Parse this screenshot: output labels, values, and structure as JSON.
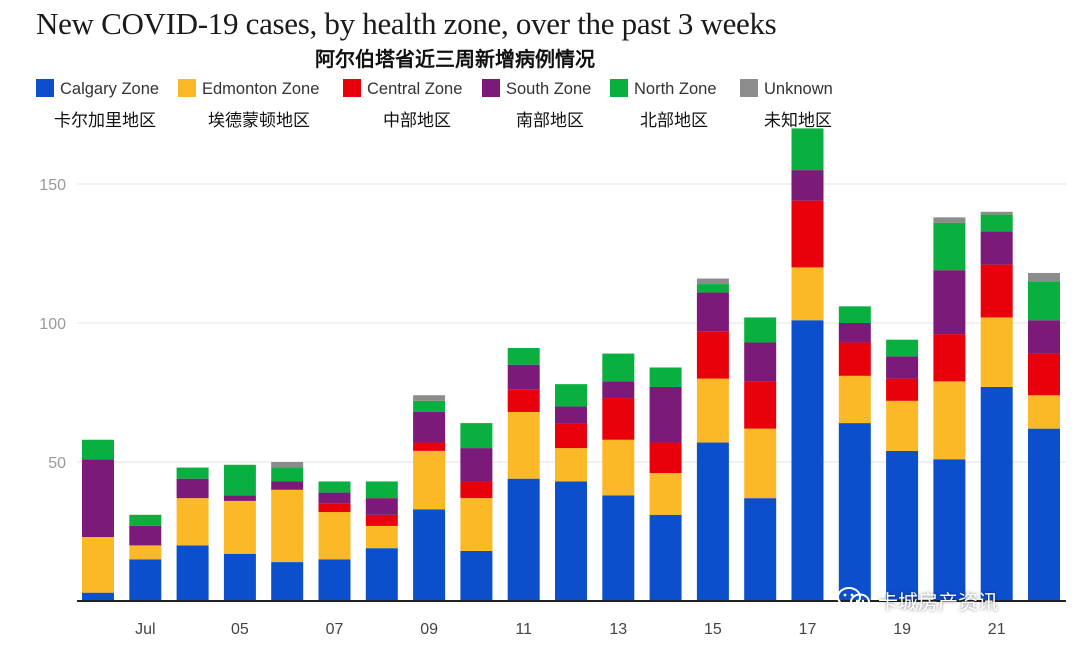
{
  "chart_data": {
    "type": "bar",
    "stacked": true,
    "title": "New COVID-19 cases, by health zone, over the past 3 weeks",
    "subtitle": "阿尔伯塔省近三周新增病例情况",
    "x_tick_labels": [
      "Jul",
      "05",
      "07",
      "09",
      "11",
      "13",
      "15",
      "17",
      "19",
      "21"
    ],
    "y_ticks": [
      50,
      100,
      150
    ],
    "ylim": [
      0,
      172
    ],
    "grid": true,
    "legend_position": "top",
    "series": [
      {
        "name": "Calgary Zone",
        "name_cn": "卡尔加里地区",
        "color": "#0b4fcc",
        "values": [
          3,
          15,
          20,
          17,
          14,
          15,
          19,
          33,
          18,
          44,
          43,
          38,
          31,
          57,
          37,
          101,
          64,
          54,
          51,
          77,
          62
        ]
      },
      {
        "name": "Edmonton Zone",
        "name_cn": "埃德蒙顿地区",
        "color": "#fbb927",
        "values": [
          20,
          5,
          17,
          19,
          26,
          17,
          8,
          21,
          19,
          24,
          12,
          20,
          15,
          23,
          25,
          19,
          17,
          18,
          28,
          25,
          12
        ]
      },
      {
        "name": "Central Zone",
        "name_cn": "中部地区",
        "color": "#e8000b",
        "values": [
          0,
          0,
          0,
          0,
          0,
          3,
          4,
          3,
          6,
          8,
          9,
          15,
          11,
          17,
          17,
          24,
          12,
          8,
          17,
          19,
          15
        ]
      },
      {
        "name": "South Zone",
        "name_cn": "南部地区",
        "color": "#7b1a78",
        "values": [
          28,
          7,
          7,
          2,
          3,
          4,
          6,
          11,
          12,
          9,
          6,
          6,
          20,
          14,
          14,
          11,
          7,
          8,
          23,
          12,
          12
        ]
      },
      {
        "name": "North Zone",
        "name_cn": "北部地区",
        "color": "#09b040",
        "values": [
          7,
          4,
          4,
          11,
          5,
          4,
          6,
          4,
          9,
          6,
          8,
          10,
          7,
          3,
          9,
          15,
          6,
          6,
          17,
          6,
          14
        ]
      },
      {
        "name": "Unknown",
        "name_cn": "未知地区",
        "color": "#8c8c8c",
        "values": [
          0,
          0,
          0,
          0,
          2,
          0,
          0,
          2,
          0,
          0,
          0,
          0,
          0,
          2,
          0,
          0,
          0,
          0,
          2,
          1,
          3
        ]
      }
    ]
  },
  "watermark": {
    "text": "卡城房产资讯",
    "icon": "wechat-icon"
  }
}
